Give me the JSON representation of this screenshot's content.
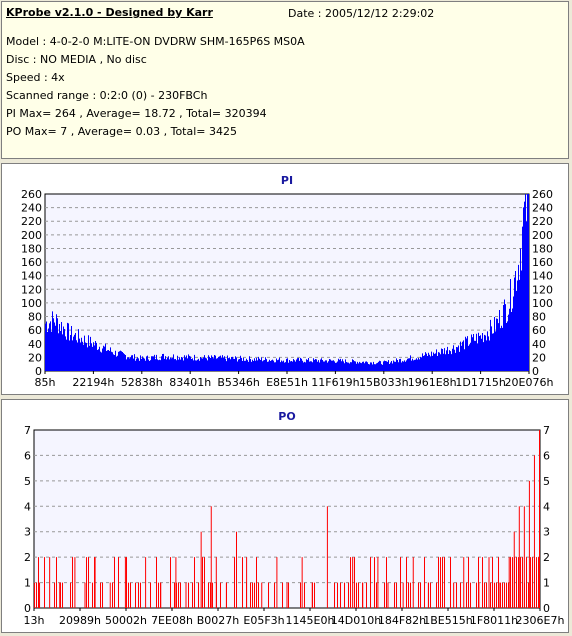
{
  "header": {
    "title": "KProbe v2.1.0 - Designed by Karr",
    "date": "Date : 2005/12/12 2:29:02",
    "model": "Model : 4-0-2-0 M:LITE-ON DVDRW SHM-165P6S MS0A",
    "disc": "Disc : NO MEDIA , No disc",
    "speed": "Speed : 4x",
    "scanned_range": "Scanned range : 0:2:0 (0) - 230FBCh",
    "pi_stats": "PI Max= 264 , Average= 18.72 , Total= 320394",
    "po_stats": "PO Max= 7 , Average= 0.03 , Total= 3425"
  },
  "chart_data": [
    {
      "type": "area",
      "title": "PI",
      "color": "#0000ff",
      "ylim": [
        0,
        260
      ],
      "yticks": [
        "0",
        "20",
        "40",
        "60",
        "80",
        "100",
        "120",
        "140",
        "160",
        "180",
        "200",
        "220",
        "240",
        "260"
      ],
      "xtick_labels": [
        "85h",
        "22194h",
        "52838h",
        "83401h",
        "B5346h",
        "E8E51h",
        "11F619h",
        "15B033h",
        "1961E8h",
        "1D1715h",
        "20E076h"
      ],
      "profile": {
        "positions": [
          0,
          0.02,
          0.05,
          0.1,
          0.15,
          0.2,
          0.25,
          0.3,
          0.4,
          0.5,
          0.6,
          0.7,
          0.75,
          0.8,
          0.85,
          0.9,
          0.93,
          0.96,
          0.98,
          0.99,
          1.0
        ],
        "values": [
          70,
          75,
          55,
          40,
          25,
          18,
          22,
          20,
          18,
          16,
          15,
          12,
          18,
          25,
          35,
          50,
          65,
          100,
          160,
          220,
          260
        ]
      },
      "grid": true
    },
    {
      "type": "bar",
      "title": "PO",
      "color": "#ff0000",
      "ylim": [
        0,
        7
      ],
      "yticks": [
        "0",
        "1",
        "2",
        "3",
        "4",
        "5",
        "6",
        "7"
      ],
      "xtick_labels": [
        "13h",
        "20989h",
        "50002h",
        "7EE08h",
        "B0027h",
        "E05F3h",
        "1145E0h",
        "14D010h",
        "184F82h",
        "1BE515h",
        "1F8011h",
        "2306E7h"
      ],
      "spikes": {
        "positions": [
          0.01,
          0.03,
          0.05,
          0.08,
          0.1,
          0.12,
          0.15,
          0.18,
          0.2,
          0.22,
          0.25,
          0.28,
          0.3,
          0.33,
          0.35,
          0.36,
          0.38,
          0.4,
          0.42,
          0.45,
          0.48,
          0.5,
          0.53,
          0.55,
          0.58,
          0.6,
          0.63,
          0.65,
          0.68,
          0.7,
          0.73,
          0.75,
          0.78,
          0.8,
          0.83,
          0.85,
          0.88,
          0.9,
          0.92,
          0.94,
          0.95,
          0.96,
          0.97,
          0.98,
          0.99,
          1.0
        ],
        "values": [
          1,
          2,
          1,
          2,
          1,
          2,
          1,
          2,
          1,
          2,
          1,
          2,
          1,
          3,
          4,
          2,
          1,
          3,
          2,
          1,
          2,
          1,
          2,
          1,
          4,
          1,
          2,
          1,
          2,
          1,
          1,
          2,
          1,
          2,
          1,
          2,
          1,
          2,
          1,
          2,
          3,
          4,
          4,
          5,
          6,
          7
        ]
      },
      "grid": true
    }
  ]
}
